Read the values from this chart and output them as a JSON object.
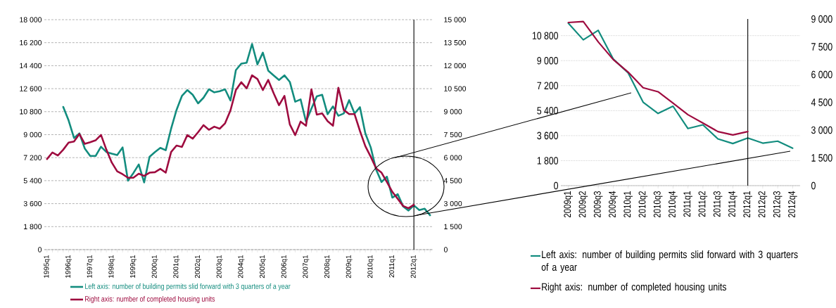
{
  "chart_data": [
    {
      "type": "line",
      "categories": [
        "1995q1",
        null,
        null,
        null,
        "1996q1",
        null,
        null,
        null,
        "1997q1",
        null,
        null,
        null,
        "1998q1",
        null,
        null,
        null,
        "1999q1",
        null,
        null,
        null,
        "2000q1",
        null,
        null,
        null,
        "2001q1",
        null,
        null,
        null,
        "2002q1",
        null,
        null,
        null,
        "2003q1",
        null,
        null,
        null,
        "2004q1",
        null,
        null,
        null,
        "2005q1",
        null,
        null,
        null,
        "2006q1",
        null,
        null,
        null,
        "2007q1",
        null,
        null,
        null,
        "2008q1",
        null,
        null,
        null,
        "2009q1",
        null,
        null,
        null,
        "2010q1",
        null,
        null,
        null,
        "2011q1",
        null,
        null,
        null,
        "2012q1",
        null,
        null,
        null
      ],
      "series": [
        {
          "name": "Left axis: number of building permits slid forward with 3 quarters of a year",
          "color": "#128c7e",
          "axis": "y",
          "values": [
            null,
            null,
            null,
            11170,
            10110,
            8740,
            9100,
            7910,
            7330,
            7330,
            8060,
            7640,
            7510,
            7400,
            8000,
            5400,
            5990,
            6670,
            5260,
            7270,
            7640,
            7970,
            7780,
            9470,
            10930,
            12030,
            12490,
            12120,
            11450,
            11890,
            12550,
            12310,
            12400,
            12550,
            11670,
            14050,
            14560,
            14630,
            16100,
            14500,
            15420,
            14010,
            13640,
            13280,
            13640,
            13130,
            11580,
            11760,
            10020,
            11030,
            12000,
            12120,
            10600,
            11210,
            10480,
            10660,
            11700,
            10660,
            11150,
            9100,
            8000,
            6260,
            5290,
            5710,
            4070,
            4340,
            3390,
            3060,
            3460,
            3100,
            3200,
            2690
          ]
        },
        {
          "name": "Right axis: number of completed housing units",
          "color": "#9e0b3f",
          "axis": "y2",
          "values": [
            5910,
            6340,
            6140,
            6520,
            6980,
            7050,
            7540,
            6900,
            7010,
            7130,
            7480,
            6520,
            5680,
            5110,
            4920,
            4690,
            4690,
            4950,
            4810,
            5020,
            5050,
            5270,
            5020,
            6370,
            6790,
            6700,
            7470,
            7240,
            7660,
            8120,
            7820,
            8020,
            7890,
            8240,
            9080,
            10410,
            10920,
            10520,
            11370,
            11130,
            10410,
            11070,
            10210,
            9420,
            10030,
            8170,
            7470,
            8350,
            8080,
            10460,
            8810,
            8890,
            8380,
            8080,
            10560,
            9110,
            8840,
            8840,
            7740,
            6750,
            6060,
            5300,
            5020,
            4410,
            3770,
            3310,
            2850,
            2700,
            2930,
            null,
            null,
            null
          ]
        }
      ],
      "ylim": [
        0,
        18000
      ],
      "yticks": [
        0,
        {
          "value": 1800,
          "label": "1 800"
        },
        {
          "value": 3600,
          "label": "3 600"
        },
        {
          "value": 5400,
          "label": "5 400"
        },
        {
          "value": 7200,
          "label": "7 200"
        },
        {
          "value": 9000,
          "label": "9 000"
        },
        {
          "value": 10800,
          "label": "10 800"
        },
        {
          "value": 12600,
          "label": "12 600"
        },
        {
          "value": 14400,
          "label": "14 400"
        },
        {
          "value": 16200,
          "label": "16 200"
        },
        {
          "value": 18000,
          "label": "18 000"
        }
      ],
      "y2lim": [
        0,
        15000
      ],
      "y2ticks": [
        0,
        {
          "value": 1500,
          "label": "1 500"
        },
        {
          "value": 3000,
          "label": "3 000"
        },
        {
          "value": 4500,
          "label": "4 500"
        },
        {
          "value": 6000,
          "label": "6 000"
        },
        {
          "value": 7500,
          "label": "7 500"
        },
        {
          "value": 9000,
          "label": "9 000"
        },
        {
          "value": 10500,
          "label": "10 500"
        },
        {
          "value": 12000,
          "label": "12 000"
        },
        {
          "value": 13500,
          "label": "13 500"
        },
        {
          "value": 15000,
          "label": "15 000"
        }
      ],
      "grid": "y",
      "legend": "bottom",
      "marker": "none",
      "line_style": "solid",
      "ref_lines": [
        {
          "axis": "x",
          "value": "2012q1"
        }
      ]
    },
    {
      "type": "line",
      "categories": [
        "2009q1",
        "2009q2",
        "2009q3",
        "2009q4",
        "2010q1",
        "2010q2",
        "2010q3",
        "2010q4",
        "2011q1",
        "2011q2",
        "2011q3",
        "2011q4",
        "2012q1",
        "2012q2",
        "2012q3",
        "2012q4"
      ],
      "series": [
        {
          "name": "Left axis: number of building permits slid forward with 3 quarters of a year",
          "color": "#128c7e",
          "axis": "y",
          "values": [
            11700,
            10500,
            11180,
            9120,
            8110,
            6010,
            5200,
            5720,
            4110,
            4380,
            3370,
            3030,
            3430,
            3060,
            3200,
            2690
          ]
        },
        {
          "name": "Right axis: number of completed housing units",
          "color": "#9e0b3f",
          "axis": "y2",
          "values": [
            8810,
            8860,
            7760,
            6810,
            6130,
            5290,
            5070,
            4460,
            3830,
            3380,
            2920,
            2740,
            2920,
            null,
            null,
            null
          ]
        }
      ],
      "ylim": [
        0,
        12000
      ],
      "yticks": [
        0,
        {
          "value": 1800,
          "label": "1 800"
        },
        {
          "value": 3600,
          "label": "3 600"
        },
        {
          "value": 5400,
          "label": "5 400"
        },
        {
          "value": 7200,
          "label": "7 200"
        },
        {
          "value": 9000,
          "label": "9 000"
        },
        {
          "value": 10800,
          "label": "10 800"
        }
      ],
      "y2lim": [
        0,
        9000
      ],
      "y2ticks": [
        0,
        {
          "value": 1500,
          "label": "1 500"
        },
        {
          "value": 3000,
          "label": "3 000"
        },
        {
          "value": 4500,
          "label": "4 500"
        },
        {
          "value": 6000,
          "label": "6 000"
        },
        {
          "value": 7500,
          "label": "7 500"
        },
        {
          "value": 9000,
          "label": "9 000"
        }
      ],
      "grid": "y",
      "legend": "bottom",
      "marker": "none",
      "line_style": "solid",
      "ref_lines": [
        {
          "axis": "x",
          "value": "2012q1"
        }
      ]
    }
  ]
}
